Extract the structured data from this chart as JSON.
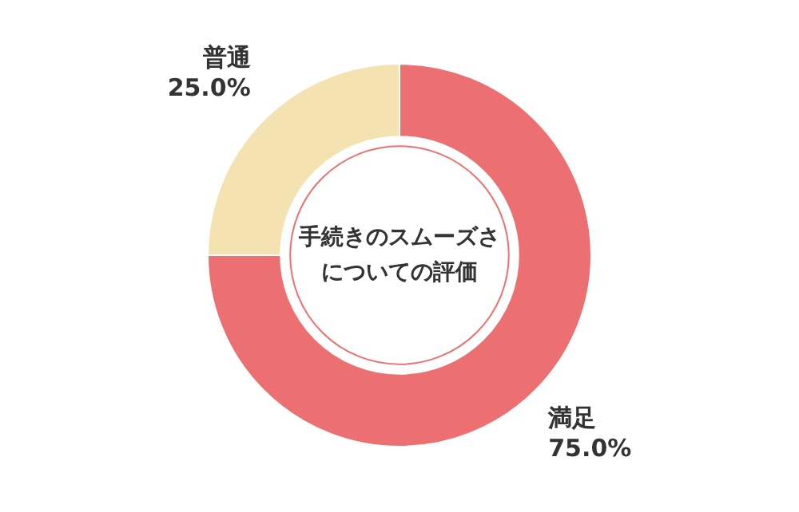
{
  "chart_data": {
    "type": "donut",
    "title": "手続きのスムーズさについての評価",
    "categories": [
      "満足",
      "普通"
    ],
    "values": [
      75.0,
      25.0
    ],
    "colors": [
      "#ec7071",
      "#f5e2b1"
    ],
    "value_labels": [
      "75.0%",
      "25.0%"
    ]
  }
}
